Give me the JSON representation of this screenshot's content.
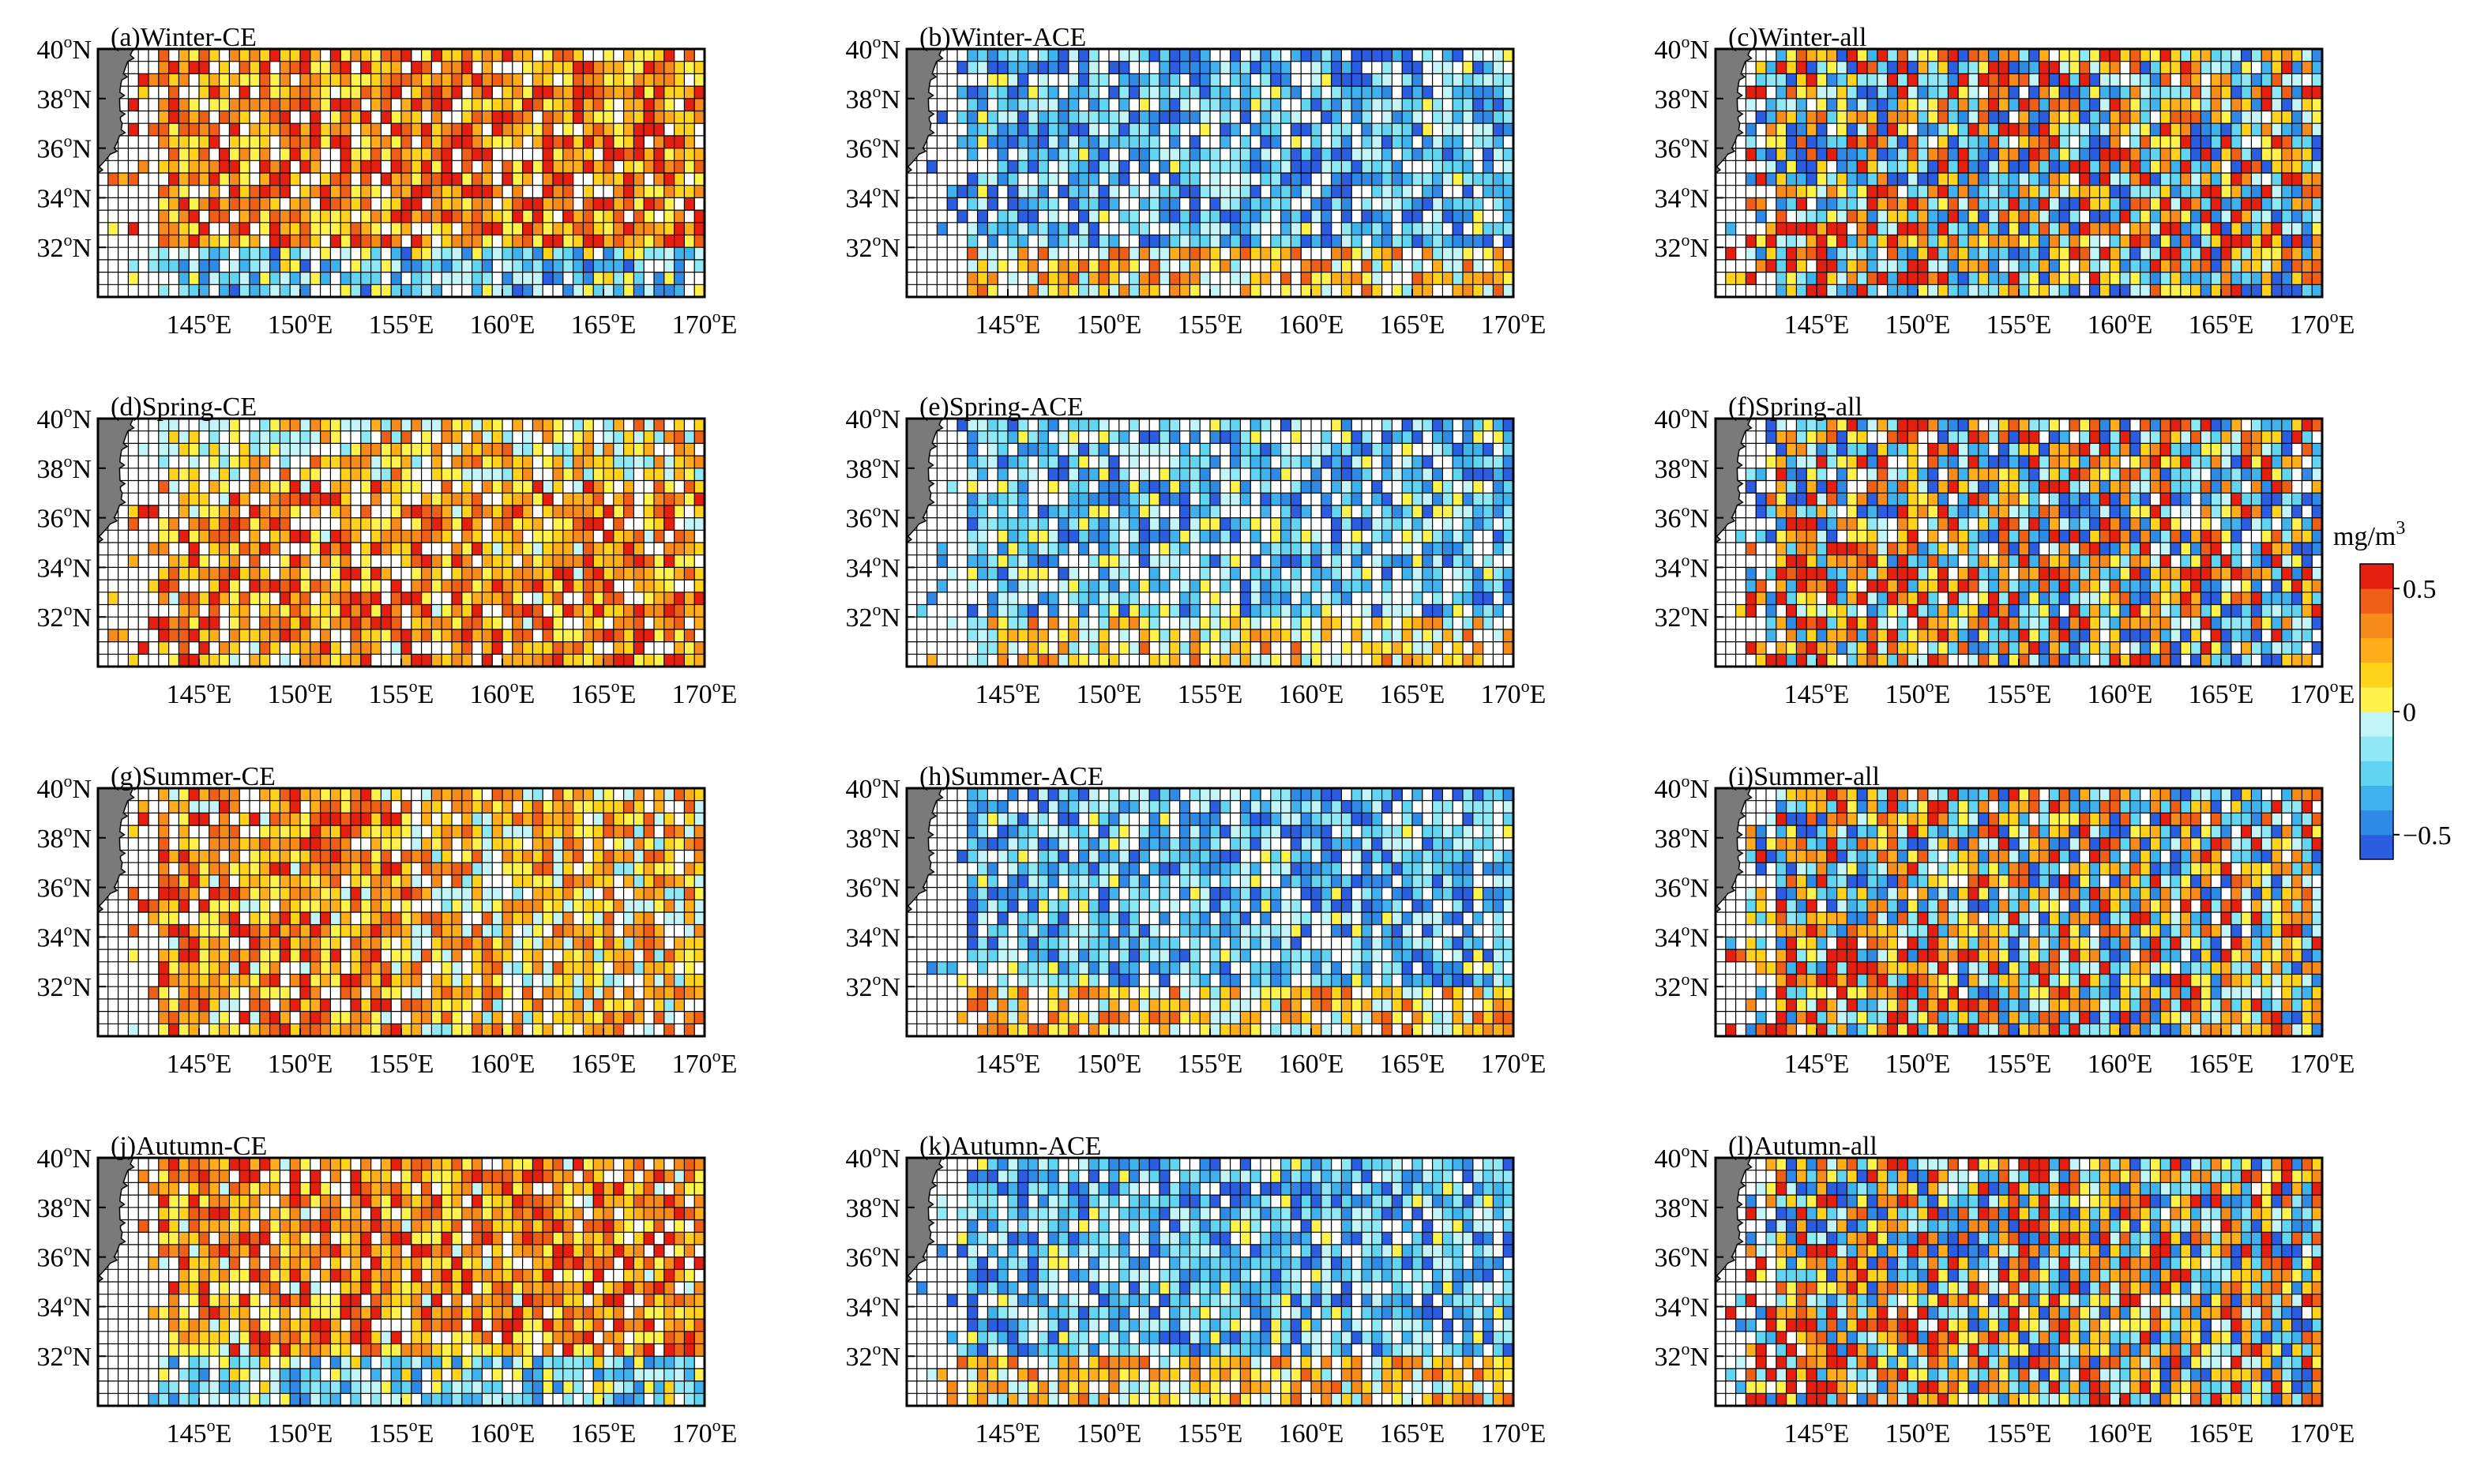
{
  "figure": {
    "colorbar": {
      "unit": "mg/m",
      "unit_exp": "3",
      "ticks": [
        {
          "value": 0.5,
          "label": "0.5"
        },
        {
          "value": 0,
          "label": "0"
        },
        {
          "value": -0.5,
          "label": "−0.5"
        }
      ],
      "range": [
        -0.6,
        0.6
      ],
      "colors": [
        "#2a5ddf",
        "#2f8ae6",
        "#3fb2ee",
        "#61d4f2",
        "#8fe8f5",
        "#c3f4f7",
        "#fff24a",
        "#ffd21c",
        "#ffad1a",
        "#f68a1a",
        "#ee5e16",
        "#e41f10"
      ]
    },
    "lat_ticks": [
      {
        "value": 40,
        "label": "40",
        "sup": "o",
        "suf": "N"
      },
      {
        "value": 38,
        "label": "38",
        "sup": "o",
        "suf": "N"
      },
      {
        "value": 36,
        "label": "36",
        "sup": "o",
        "suf": "N"
      },
      {
        "value": 34,
        "label": "34",
        "sup": "o",
        "suf": "N"
      },
      {
        "value": 32,
        "label": "32",
        "sup": "o",
        "suf": "N"
      }
    ],
    "lon_ticks": [
      {
        "value": 145,
        "label": "145",
        "sup": "o",
        "suf": "E"
      },
      {
        "value": 150,
        "label": "150",
        "sup": "o",
        "suf": "E"
      },
      {
        "value": 155,
        "label": "155",
        "sup": "o",
        "suf": "E"
      },
      {
        "value": 160,
        "label": "160",
        "sup": "o",
        "suf": "E"
      },
      {
        "value": 165,
        "label": "165",
        "sup": "o",
        "suf": "E"
      },
      {
        "value": 170,
        "label": "170",
        "sup": "o",
        "suf": "E"
      }
    ]
  },
  "chart_data": [
    {
      "type": "heatmap",
      "title": "(a)Winter-CE",
      "xlim": [
        140,
        170
      ],
      "ylim": [
        30,
        40
      ],
      "grid_step": 0.5,
      "sign": 1,
      "mean": 0.32,
      "coverage": 0.85,
      "pattern": "north"
    },
    {
      "type": "heatmap",
      "title": "(b)Winter-ACE",
      "xlim": [
        140,
        170
      ],
      "ylim": [
        30,
        40
      ],
      "grid_step": 0.5,
      "sign": -1,
      "mean": 0.3,
      "coverage": 0.8,
      "pattern": "north"
    },
    {
      "type": "heatmap",
      "title": "(c)Winter-all",
      "xlim": [
        140,
        170
      ],
      "ylim": [
        30,
        40
      ],
      "grid_step": 0.5,
      "sign": 0,
      "mean": 0.05,
      "coverage": 0.97,
      "pattern": "mixed"
    },
    {
      "type": "heatmap",
      "title": "(d)Spring-CE",
      "xlim": [
        140,
        170
      ],
      "ylim": [
        30,
        40
      ],
      "grid_step": 0.5,
      "sign": 1,
      "mean": 0.3,
      "coverage": 0.8,
      "pattern": "south"
    },
    {
      "type": "heatmap",
      "title": "(e)Spring-ACE",
      "xlim": [
        140,
        170
      ],
      "ylim": [
        30,
        40
      ],
      "grid_step": 0.5,
      "sign": -1,
      "mean": 0.25,
      "coverage": 0.75,
      "pattern": "north"
    },
    {
      "type": "heatmap",
      "title": "(f)Spring-all",
      "xlim": [
        140,
        170
      ],
      "ylim": [
        30,
        40
      ],
      "grid_step": 0.5,
      "sign": 0,
      "mean": 0.1,
      "coverage": 0.92,
      "pattern": "mixed"
    },
    {
      "type": "heatmap",
      "title": "(g)Summer-CE",
      "xlim": [
        140,
        170
      ],
      "ylim": [
        30,
        40
      ],
      "grid_step": 0.5,
      "sign": 1,
      "mean": 0.28,
      "coverage": 0.85,
      "pattern": "west"
    },
    {
      "type": "heatmap",
      "title": "(h)Summer-ACE",
      "xlim": [
        140,
        170
      ],
      "ylim": [
        30,
        40
      ],
      "grid_step": 0.5,
      "sign": -1,
      "mean": 0.28,
      "coverage": 0.8,
      "pattern": "north"
    },
    {
      "type": "heatmap",
      "title": "(i)Summer-all",
      "xlim": [
        140,
        170
      ],
      "ylim": [
        30,
        40
      ],
      "grid_step": 0.5,
      "sign": 0,
      "mean": 0.0,
      "coverage": 0.95,
      "pattern": "mixed"
    },
    {
      "type": "heatmap",
      "title": "(j)Autumn-CE",
      "xlim": [
        140,
        170
      ],
      "ylim": [
        30,
        40
      ],
      "grid_step": 0.5,
      "sign": 1,
      "mean": 0.3,
      "coverage": 0.85,
      "pattern": "north"
    },
    {
      "type": "heatmap",
      "title": "(k)Autumn-ACE",
      "xlim": [
        140,
        170
      ],
      "ylim": [
        30,
        40
      ],
      "grid_step": 0.5,
      "sign": -1,
      "mean": 0.28,
      "coverage": 0.8,
      "pattern": "north"
    },
    {
      "type": "heatmap",
      "title": "(l)Autumn-all",
      "xlim": [
        140,
        170
      ],
      "ylim": [
        30,
        40
      ],
      "grid_step": 0.5,
      "sign": 0,
      "mean": 0.0,
      "coverage": 0.97,
      "pattern": "mixed"
    }
  ]
}
